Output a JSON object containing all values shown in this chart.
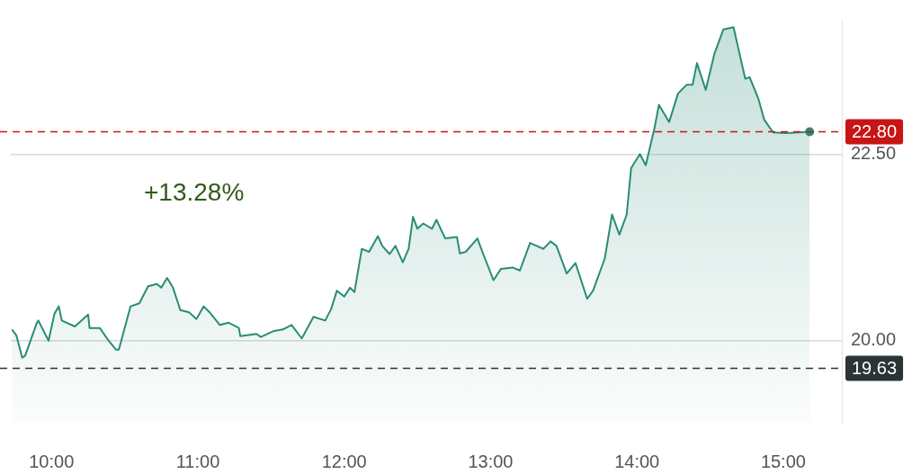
{
  "chart_data": {
    "type": "area",
    "annotations": [
      "+13.28%"
    ],
    "xlim": [
      9.72,
      15.4
    ],
    "ylim": [
      18.9,
      24.3
    ],
    "xticks": [
      {
        "value": 10,
        "label": "10:00"
      },
      {
        "value": 11,
        "label": "11:00"
      },
      {
        "value": 12,
        "label": "12:00"
      },
      {
        "value": 13,
        "label": "13:00"
      },
      {
        "value": 14,
        "label": "14:00"
      },
      {
        "value": 15,
        "label": "15:00"
      }
    ],
    "yticks": [
      {
        "value": 20,
        "label": "20.00"
      },
      {
        "value": 22.5,
        "label": "22.50"
      }
    ],
    "grid": "y",
    "legend": false,
    "ref_lines": [
      {
        "axis": "y",
        "value": 22.8,
        "label": "22.80",
        "color": "#c81414",
        "line_style": "dashed"
      },
      {
        "axis": "y",
        "value": 19.63,
        "label": "19.63",
        "color": "#2b3436",
        "line_style": "dashed"
      }
    ],
    "series": [
      {
        "color": "#2a8c74",
        "x": [
          9.73,
          9.76,
          9.8,
          9.82,
          9.9,
          9.91,
          9.98,
          10.02,
          10.05,
          10.07,
          10.16,
          10.25,
          10.26,
          10.33,
          10.39,
          10.44,
          10.46,
          10.54,
          10.6,
          10.66,
          10.72,
          10.75,
          10.79,
          10.83,
          10.88,
          10.94,
          10.99,
          11.04,
          11.08,
          11.15,
          11.21,
          11.28,
          11.29,
          11.4,
          11.43,
          11.52,
          11.58,
          11.64,
          11.71,
          11.79,
          11.87,
          11.91,
          11.95,
          12.0,
          12.04,
          12.07,
          12.12,
          12.17,
          12.23,
          12.26,
          12.31,
          12.35,
          12.4,
          12.44,
          12.47,
          12.5,
          12.54,
          12.6,
          12.63,
          12.69,
          12.77,
          12.79,
          12.83,
          12.91,
          12.95,
          13.02,
          13.07,
          13.15,
          13.2,
          13.27,
          13.36,
          13.41,
          13.45,
          13.52,
          13.58,
          13.66,
          13.7,
          13.78,
          13.83,
          13.88,
          13.93,
          13.96,
          14.02,
          14.06,
          14.12,
          14.15,
          14.22,
          14.28,
          14.34,
          14.38,
          14.41,
          14.47,
          14.53,
          14.59,
          14.66,
          14.69,
          14.74,
          14.77,
          14.83,
          14.87,
          14.93,
          15.02,
          15.1,
          15.18
        ],
        "values": [
          20.15,
          20.07,
          19.77,
          19.8,
          20.24,
          20.27,
          20.0,
          20.36,
          20.46,
          20.27,
          20.19,
          20.35,
          20.17,
          20.17,
          20.0,
          19.88,
          19.88,
          20.46,
          20.5,
          20.73,
          20.76,
          20.71,
          20.84,
          20.71,
          20.41,
          20.38,
          20.29,
          20.46,
          20.38,
          20.21,
          20.24,
          20.17,
          20.06,
          20.09,
          20.05,
          20.13,
          20.15,
          20.21,
          20.03,
          20.32,
          20.27,
          20.42,
          20.67,
          20.59,
          20.71,
          20.65,
          21.23,
          21.19,
          21.4,
          21.27,
          21.16,
          21.27,
          21.05,
          21.23,
          21.66,
          21.5,
          21.57,
          21.5,
          21.62,
          21.37,
          21.39,
          21.17,
          21.19,
          21.37,
          21.16,
          20.81,
          20.96,
          20.98,
          20.94,
          21.31,
          21.23,
          21.33,
          21.27,
          20.9,
          21.04,
          20.56,
          20.67,
          21.1,
          21.69,
          21.42,
          21.69,
          22.31,
          22.5,
          22.35,
          22.85,
          23.16,
          22.93,
          23.31,
          23.43,
          23.43,
          23.72,
          23.36,
          23.85,
          24.17,
          24.2,
          23.94,
          23.51,
          23.53,
          23.24,
          22.96,
          22.79,
          22.78,
          22.79,
          22.8
        ]
      }
    ]
  }
}
